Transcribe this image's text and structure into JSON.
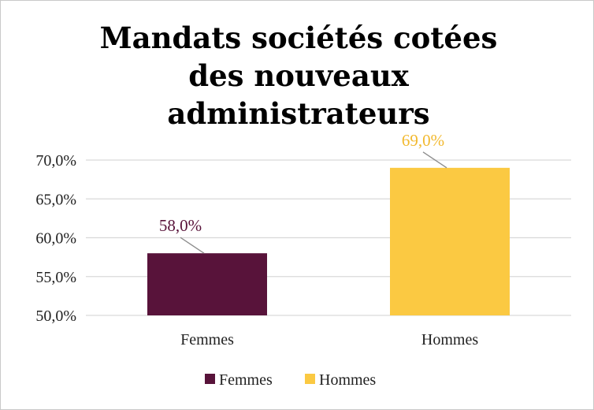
{
  "chart_data": {
    "type": "bar",
    "title_lines": [
      "Mandats sociétés cotées",
      "des nouveaux",
      "administrateurs"
    ],
    "categories": [
      "Femmes",
      "Hommes"
    ],
    "values": [
      58.0,
      69.0
    ],
    "value_labels": [
      "58,0%",
      "69,0%"
    ],
    "colors": [
      "#58133a",
      "#fbc942"
    ],
    "label_colors": [
      "#58133a",
      "#f2b92f"
    ],
    "ylim": [
      50,
      70
    ],
    "y_ticks": [
      50,
      55,
      60,
      65,
      70
    ],
    "y_tick_labels": [
      "50,0%",
      "55,0%",
      "60,0%",
      "65,0%",
      "70,0%"
    ],
    "grid": true,
    "legend": {
      "placement": "bottom",
      "entries": [
        "Femmes",
        "Hommes"
      ]
    }
  }
}
